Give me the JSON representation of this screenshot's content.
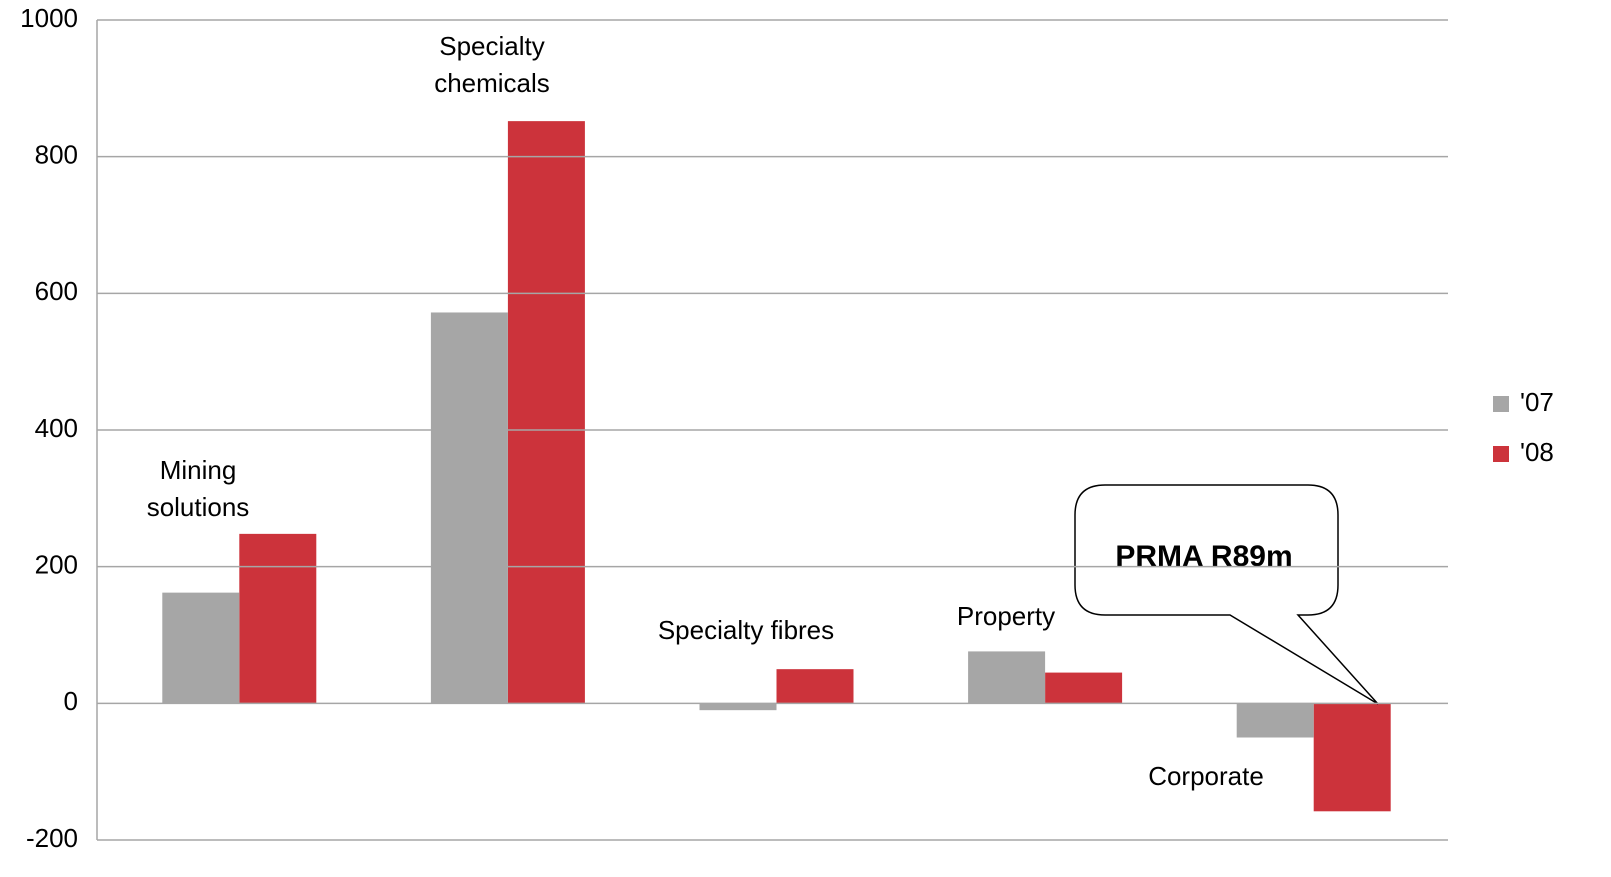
{
  "chart_data": {
    "type": "bar",
    "categories": [
      "Mining solutions",
      "Specialty chemicals",
      "Specialty fibres",
      "Property",
      "Corporate"
    ],
    "series": [
      {
        "name": "'07",
        "color": "#a6a6a6",
        "values": [
          162,
          572,
          -10,
          76,
          -50
        ]
      },
      {
        "name": "'08",
        "color": "#cc333b",
        "values": [
          248,
          852,
          50,
          45,
          -158
        ]
      }
    ],
    "ylim": [
      -200,
      1000
    ],
    "yticks": [
      -200,
      0,
      200,
      400,
      600,
      800,
      1000
    ],
    "grid": true,
    "legend": "right",
    "annotation": "PRMA R89m"
  }
}
